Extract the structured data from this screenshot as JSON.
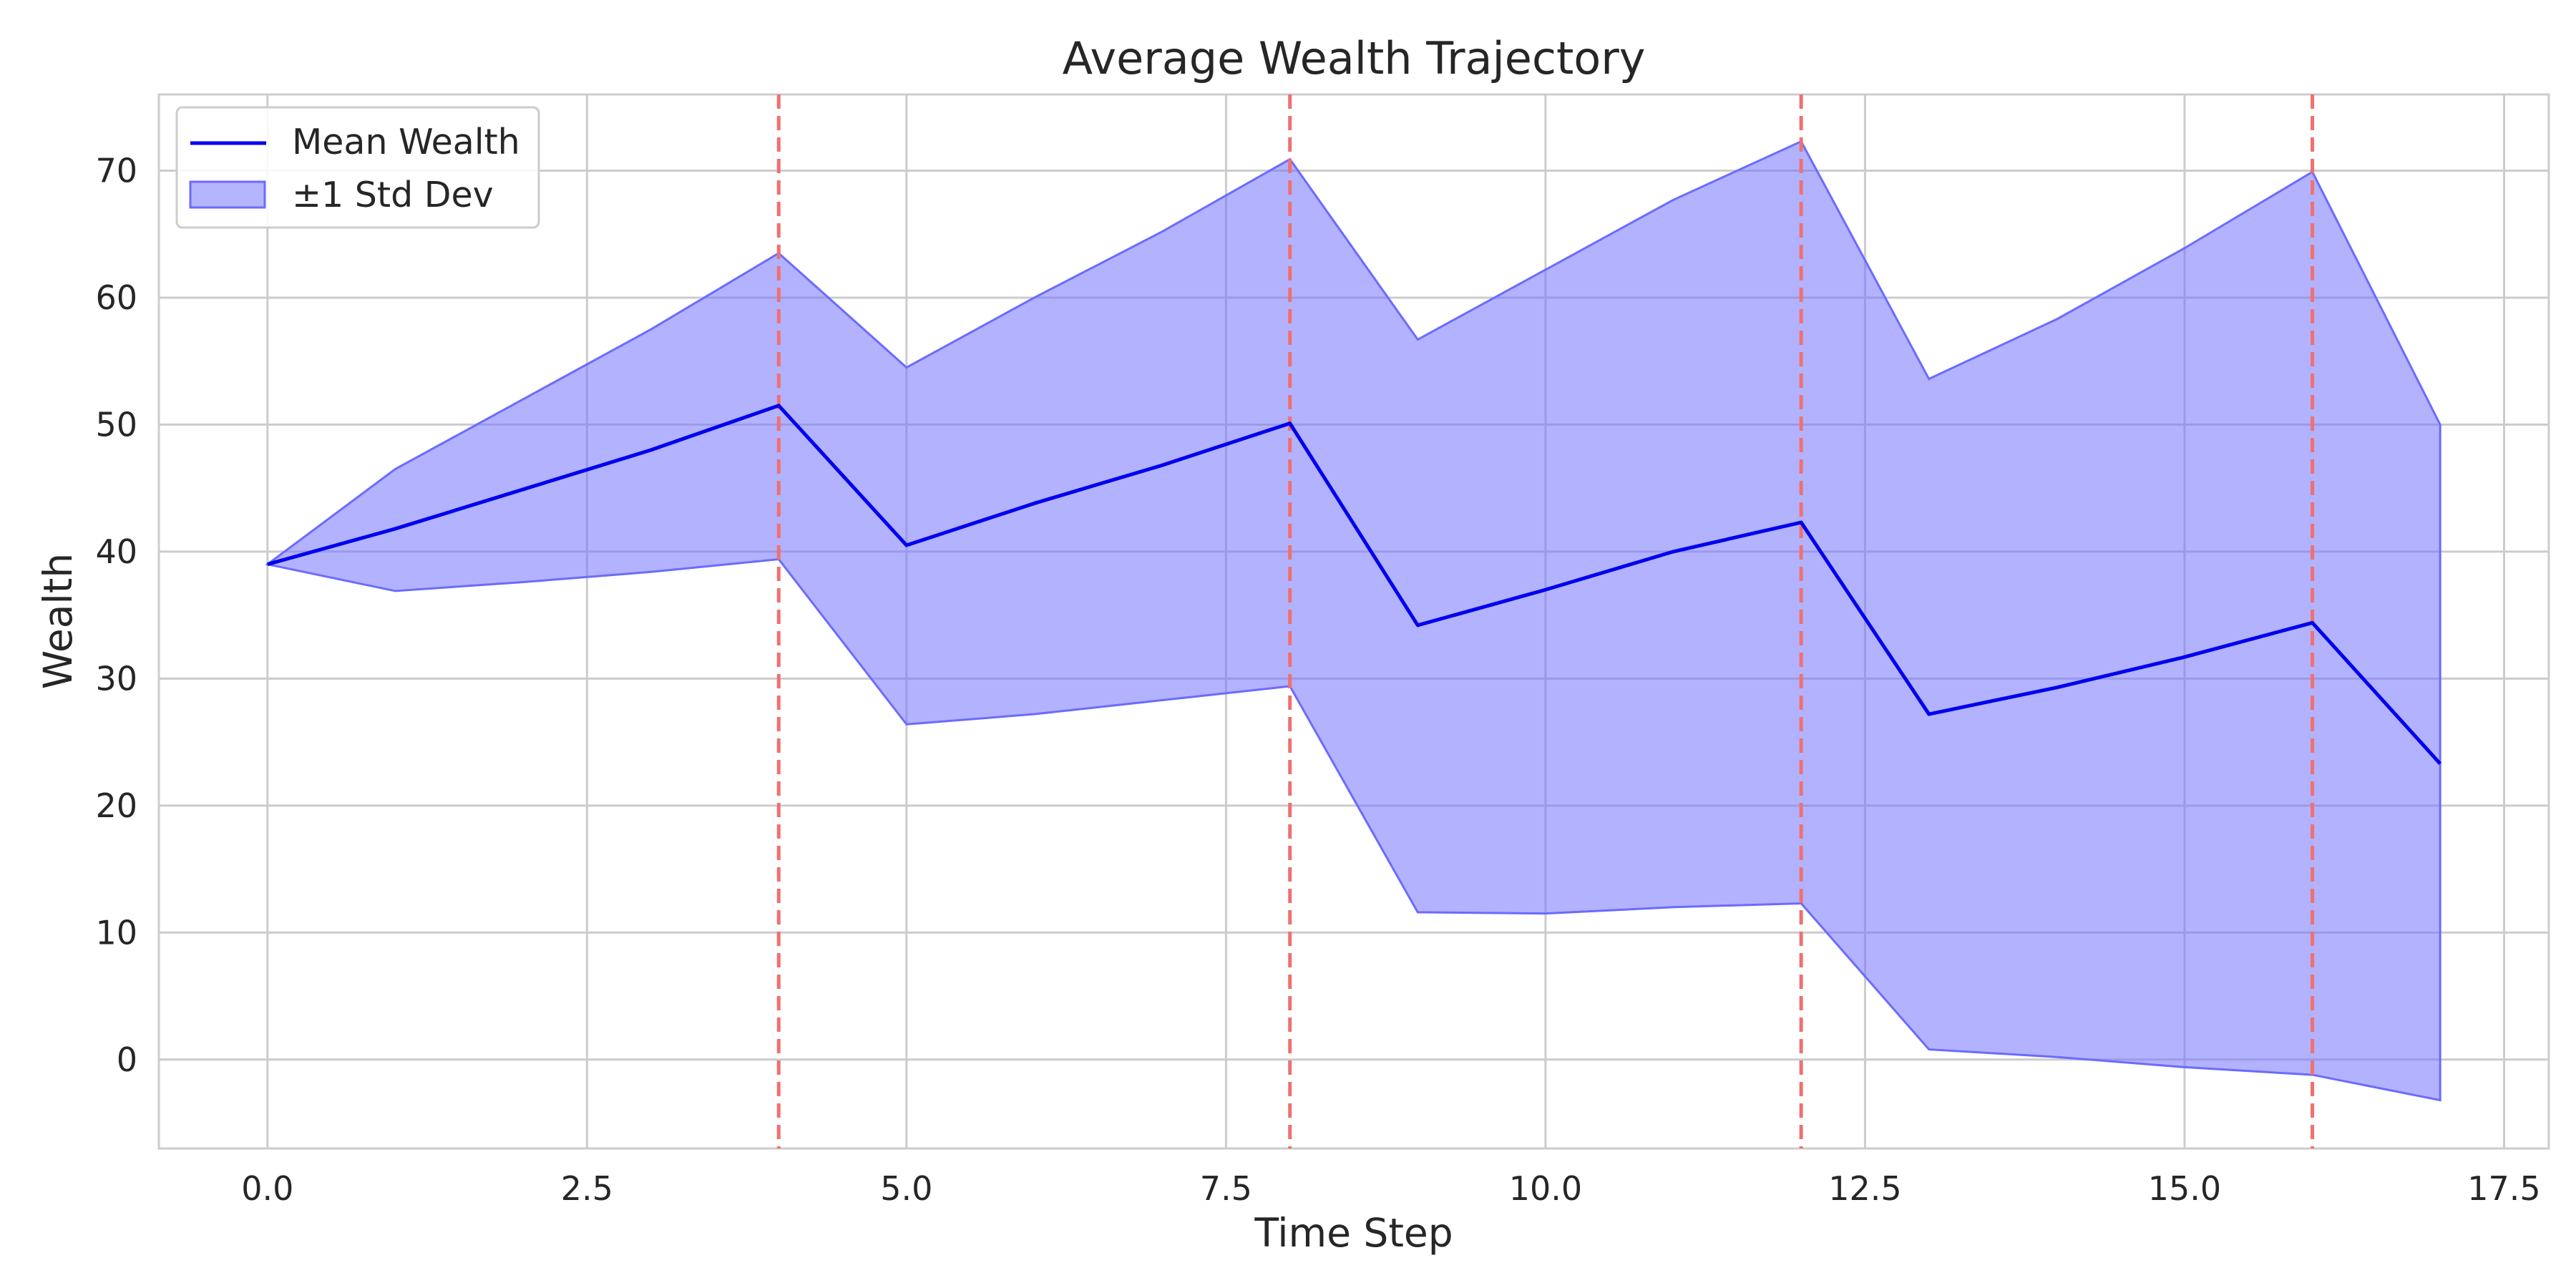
{
  "chart_data": {
    "type": "line",
    "title": "Average Wealth Trajectory",
    "xlabel": "Time Step",
    "ylabel": "Wealth",
    "xlim": [
      -0.85,
      17.85
    ],
    "ylim": [
      -7,
      76
    ],
    "xticks": [
      0.0,
      2.5,
      5.0,
      7.5,
      10.0,
      12.5,
      15.0,
      17.5
    ],
    "xtick_labels": [
      "0.0",
      "2.5",
      "5.0",
      "7.5",
      "10.0",
      "12.5",
      "15.0",
      "17.5"
    ],
    "yticks": [
      0,
      10,
      20,
      30,
      40,
      50,
      60,
      70
    ],
    "ytick_labels": [
      "0",
      "10",
      "20",
      "30",
      "40",
      "50",
      "60",
      "70"
    ],
    "grid": true,
    "legend_position": "top-left",
    "x": [
      0,
      1,
      2,
      3,
      4,
      5,
      6,
      7,
      8,
      9,
      10,
      11,
      12,
      13,
      14,
      15,
      16,
      17
    ],
    "series": [
      {
        "name": "Mean Wealth",
        "type": "line",
        "color": "#0000ee",
        "values": [
          39.0,
          41.8,
          44.9,
          48.0,
          51.5,
          40.5,
          43.8,
          46.8,
          50.1,
          34.2,
          37.0,
          40.0,
          42.3,
          27.2,
          29.3,
          31.7,
          34.4,
          23.3
        ]
      },
      {
        "name": "±1 Std Dev",
        "type": "band",
        "color": "#6b6bff",
        "lower": [
          39.0,
          36.9,
          37.6,
          38.4,
          39.4,
          26.4,
          27.2,
          28.3,
          29.4,
          11.6,
          11.5,
          12.0,
          12.3,
          0.8,
          0.2,
          -0.6,
          -1.2,
          -3.2
        ],
        "upper": [
          39.0,
          46.5,
          52.0,
          57.5,
          63.5,
          54.5,
          60.0,
          65.2,
          70.9,
          56.7,
          62.2,
          67.7,
          72.3,
          53.6,
          58.3,
          63.9,
          69.9,
          50.0
        ]
      }
    ],
    "vlines": {
      "x": [
        4,
        8,
        12,
        16
      ],
      "color": "#f07070",
      "style": "dashed"
    }
  }
}
